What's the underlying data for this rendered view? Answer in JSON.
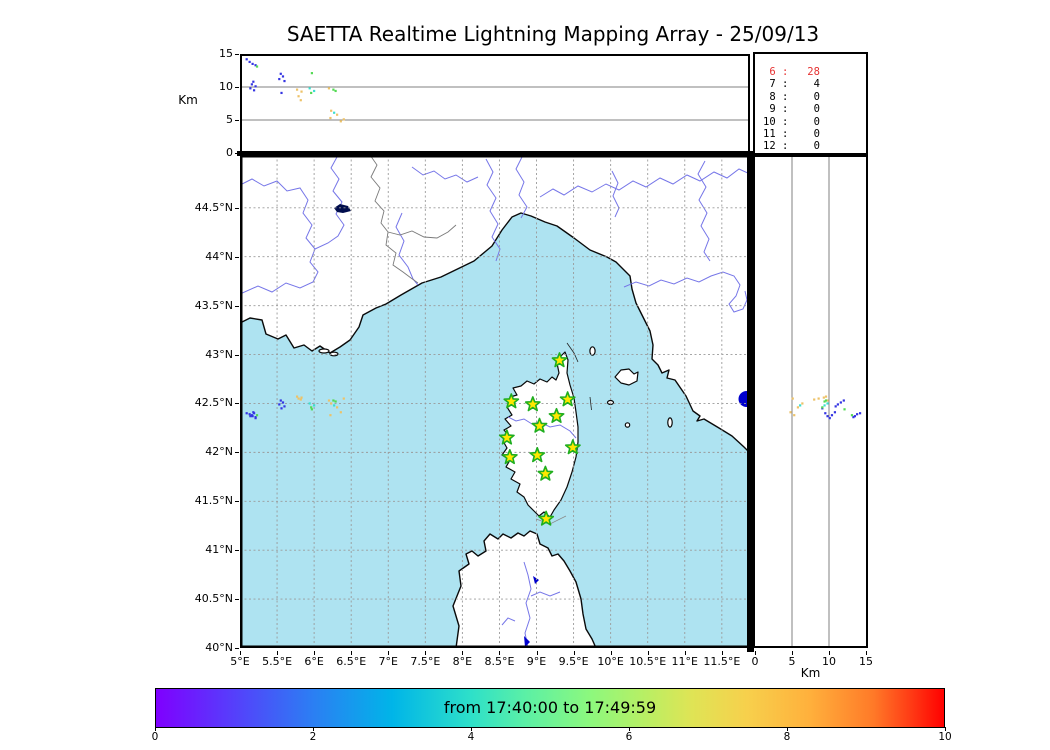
{
  "title": "SAETTA Realtime Lightning Mapping Array - 25/09/13",
  "labels": {
    "top_ylabel": "Km",
    "right_xlabel": "Km"
  },
  "colorbar": {
    "label": "from 17:40:00 to 17:49:59"
  },
  "chart_data": {
    "type": "scatter",
    "title": "SAETTA Realtime Lightning Mapping Array - 25/09/13",
    "alt_lon_panel": {
      "ylabel": "Km",
      "ylim": [
        0,
        15
      ],
      "yticks": [
        15,
        10,
        5,
        0
      ],
      "grid_km": [
        5,
        10
      ]
    },
    "map": {
      "lon_lim": [
        5,
        11.88
      ],
      "lat_lim": [
        40,
        45.04
      ],
      "lon_ticks": [
        5,
        5.5,
        6,
        6.5,
        7,
        7.5,
        8,
        8.5,
        9,
        9.5,
        10,
        10.5,
        11,
        11.5
      ],
      "lat_ticks": [
        40,
        40.5,
        41,
        41.5,
        42,
        42.5,
        43,
        43.5,
        44,
        44.5
      ],
      "lon_unit": "°E",
      "lat_unit": "°N"
    },
    "alt_lat_panel": {
      "xlabel": "Km",
      "xlim": [
        0,
        15
      ],
      "xticks": [
        0,
        5,
        10,
        15
      ],
      "grid_km": [
        5,
        10
      ]
    },
    "colorbar": {
      "label": "from 17:40:00 to 17:49:59",
      "range": [
        0,
        10
      ],
      "ticks": [
        0,
        2,
        4,
        6,
        8,
        10
      ]
    },
    "hour_counts": [
      {
        "hour": "6",
        "count": "28",
        "highlight": true
      },
      {
        "hour": "7",
        "count": "4",
        "highlight": false
      },
      {
        "hour": "8",
        "count": "0",
        "highlight": false
      },
      {
        "hour": "9",
        "count": "0",
        "highlight": false
      },
      {
        "hour": "10",
        "count": "0",
        "highlight": false
      },
      {
        "hour": "11",
        "count": "0",
        "highlight": false
      },
      {
        "hour": "12",
        "count": "0",
        "highlight": false
      }
    ],
    "point_colors": {
      "b": "#3535e2",
      "c": "#3bdfd0",
      "g": "#54da54",
      "o": "#edc268"
    },
    "station_style": {
      "fill": "#ffe800",
      "stroke": "#1fae1f"
    },
    "stations_lonlat": [
      [
        9.31,
        42.94
      ],
      [
        8.66,
        42.52
      ],
      [
        8.95,
        42.49
      ],
      [
        9.42,
        42.54
      ],
      [
        9.27,
        42.37
      ],
      [
        9.04,
        42.27
      ],
      [
        8.6,
        42.15
      ],
      [
        9.49,
        42.05
      ],
      [
        8.64,
        41.95
      ],
      [
        9.01,
        41.97
      ],
      [
        9.12,
        41.78
      ],
      [
        9.13,
        41.32
      ]
    ],
    "sources_lon_lat_altkm_color": [
      [
        5.09,
        42.4,
        14.2,
        "b"
      ],
      [
        5.13,
        42.39,
        13.8,
        "b"
      ],
      [
        5.17,
        42.37,
        13.5,
        "b"
      ],
      [
        5.21,
        42.36,
        13.3,
        "b"
      ],
      [
        5.23,
        42.38,
        13.1,
        "g"
      ],
      [
        5.18,
        42.41,
        10.8,
        "b"
      ],
      [
        5.16,
        42.38,
        10.4,
        "b"
      ],
      [
        5.21,
        42.35,
        10.1,
        "b"
      ],
      [
        5.14,
        42.37,
        9.8,
        "b"
      ],
      [
        5.19,
        42.4,
        9.5,
        "b"
      ],
      [
        5.55,
        42.53,
        12.0,
        "b"
      ],
      [
        5.58,
        42.51,
        11.6,
        "b"
      ],
      [
        5.53,
        42.49,
        11.2,
        "b"
      ],
      [
        5.6,
        42.47,
        10.9,
        "b"
      ],
      [
        5.56,
        42.45,
        9.1,
        "b"
      ],
      [
        5.77,
        42.57,
        9.6,
        "o"
      ],
      [
        5.83,
        42.56,
        9.3,
        "o"
      ],
      [
        5.79,
        42.55,
        8.6,
        "o"
      ],
      [
        5.82,
        42.54,
        8.0,
        "o"
      ],
      [
        5.97,
        42.44,
        12.1,
        "g"
      ],
      [
        5.94,
        42.5,
        9.8,
        "c"
      ],
      [
        6.0,
        42.48,
        9.4,
        "c"
      ],
      [
        5.96,
        42.46,
        9.1,
        "g"
      ],
      [
        6.2,
        42.53,
        9.8,
        "o"
      ],
      [
        6.26,
        42.53,
        9.6,
        "g"
      ],
      [
        6.29,
        42.52,
        9.4,
        "g"
      ],
      [
        6.23,
        42.5,
        6.4,
        "o"
      ],
      [
        6.27,
        42.48,
        6.1,
        "c"
      ],
      [
        6.31,
        42.46,
        5.8,
        "o"
      ],
      [
        6.22,
        42.38,
        5.3,
        "o"
      ],
      [
        6.4,
        42.55,
        5.1,
        "o"
      ],
      [
        6.36,
        42.41,
        4.8,
        "o"
      ]
    ]
  }
}
